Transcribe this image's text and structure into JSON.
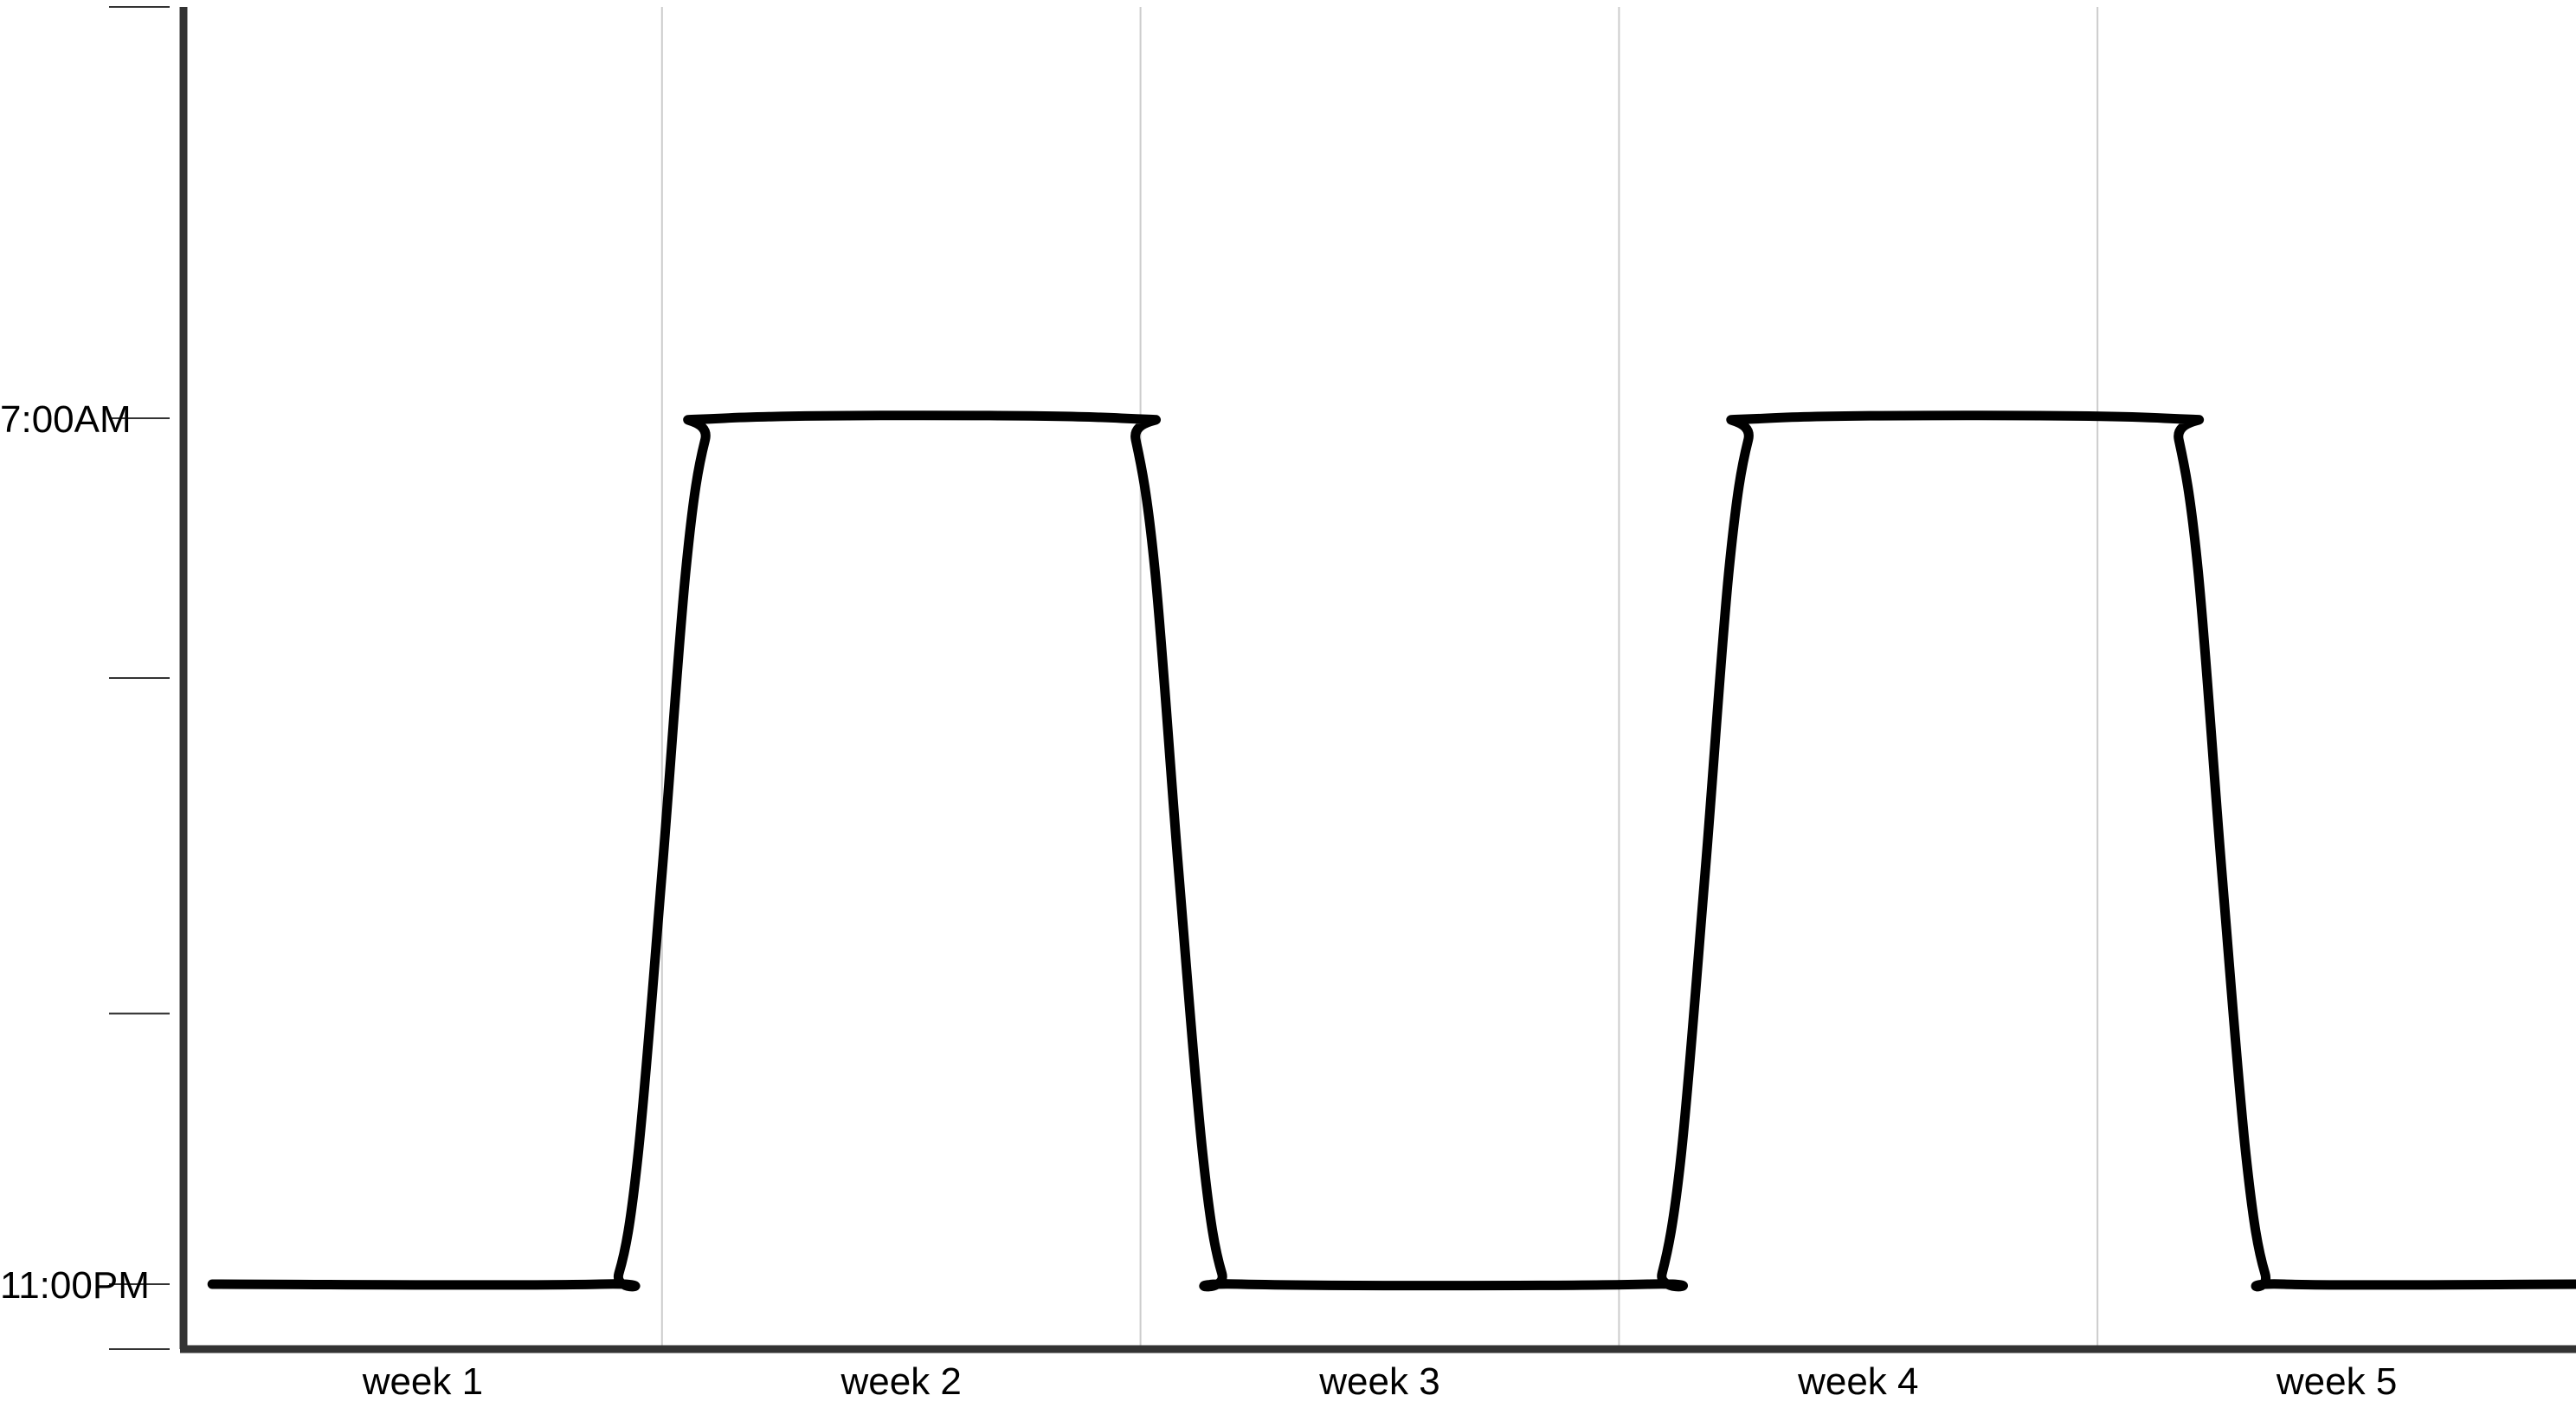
{
  "chart_data": {
    "type": "line",
    "title": "",
    "xlabel": "",
    "ylabel": "",
    "categories": [
      "week 1",
      "week 2",
      "week 3",
      "week 4",
      "week 5"
    ],
    "y_tick_labels": [
      {
        "label": "7:00AM",
        "value": 8
      },
      {
        "label": "11:00PM",
        "value": 0
      }
    ],
    "ylim": [
      -0.6,
      11.8
    ],
    "y_ticks": [
      -0.6,
      0,
      2.5,
      5.6,
      8,
      11.8
    ],
    "grid": "vertical",
    "series": [
      {
        "values": [
          [
            0.06,
            0
          ],
          [
            0.87,
            0
          ],
          [
            0.91,
            0.1
          ],
          [
            0.95,
            1.2
          ],
          [
            1.0,
            3.8
          ],
          [
            1.05,
            6.6
          ],
          [
            1.09,
            7.8
          ],
          [
            1.13,
            8
          ],
          [
            1.96,
            8
          ],
          [
            1.99,
            7.8
          ],
          [
            2.03,
            6.6
          ],
          [
            2.08,
            3.8
          ],
          [
            2.13,
            1.2
          ],
          [
            2.17,
            0.1
          ],
          [
            2.21,
            0
          ],
          [
            3.06,
            0
          ],
          [
            3.09,
            0.1
          ],
          [
            3.13,
            1.2
          ],
          [
            3.18,
            3.8
          ],
          [
            3.23,
            6.6
          ],
          [
            3.27,
            7.8
          ],
          [
            3.31,
            8
          ],
          [
            4.14,
            8
          ],
          [
            4.17,
            7.8
          ],
          [
            4.21,
            6.6
          ],
          [
            4.26,
            3.8
          ],
          [
            4.31,
            1.2
          ],
          [
            4.35,
            0.1
          ],
          [
            4.39,
            0
          ],
          [
            5.0,
            0
          ]
        ],
        "color": "#000000"
      }
    ],
    "axis_color": "#333333",
    "grid_color": "#cccccc"
  }
}
